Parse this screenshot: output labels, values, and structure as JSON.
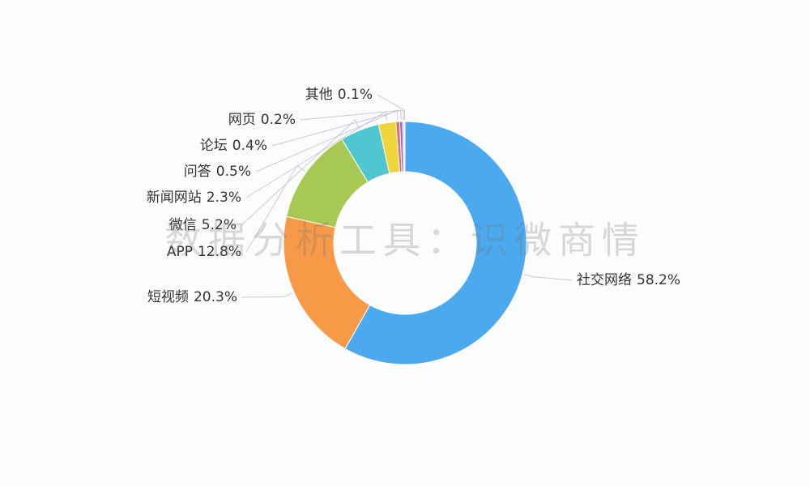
{
  "chart_data": {
    "type": "donut",
    "categories": [
      "社交网络",
      "短视频",
      "APP",
      "微信",
      "新闻网站",
      "问答",
      "论坛",
      "网页",
      "其他"
    ],
    "values": [
      58.2,
      20.3,
      12.8,
      5.2,
      2.3,
      0.5,
      0.4,
      0.2,
      0.1
    ],
    "value_labels": [
      "58.2%",
      "20.3%",
      "12.8%",
      "5.2%",
      "2.3%",
      "0.5%",
      "0.4%",
      "0.2%",
      "0.1%"
    ],
    "colors": [
      "#4ba9ef",
      "#f79a47",
      "#a7c853",
      "#50c7d0",
      "#f0d43c",
      "#e66b6b",
      "#8c72c6",
      "#f2a6c2",
      "#5c7fd6"
    ]
  },
  "watermark": "数据分析工具：识微商情"
}
